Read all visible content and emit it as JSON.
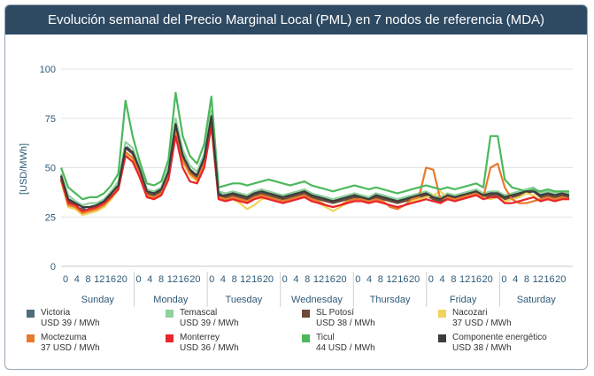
{
  "title": "Evolución semanal del Precio Marginal Local (PML) en 7 nodos de referencia (MDA)",
  "chart_data": {
    "type": "line",
    "title": "Evolución semanal del Precio Marginal Local (PML) en 7 nodos de referencia (MDA)",
    "ylabel": "[USD/MWh]",
    "ylim": [
      0,
      100
    ],
    "yticks": [
      0,
      25,
      50,
      75,
      100
    ],
    "hour_ticks": [
      "0",
      "4",
      "8",
      "12",
      "16",
      "20"
    ],
    "days": [
      "Sunday",
      "Monday",
      "Tuesday",
      "Wednesday",
      "Thursday",
      "Friday",
      "Saturday"
    ],
    "grid": "horizontal",
    "legend_position": "bottom",
    "series": [
      {
        "name": "Victoria",
        "value_text": "USD 39 / MWh",
        "color": "#4f6d7a",
        "values": [
          46,
          34,
          32,
          29,
          30,
          31,
          33,
          37,
          41,
          61,
          58,
          49,
          38,
          37,
          39,
          48,
          73,
          57,
          49,
          46,
          55,
          77,
          37,
          36,
          37,
          36,
          35,
          37,
          38,
          37,
          36,
          35,
          36,
          37,
          38,
          36,
          35,
          34,
          33,
          34,
          35,
          36,
          35,
          34,
          36,
          35,
          34,
          33,
          34,
          35,
          36,
          37,
          35,
          34,
          36,
          35,
          36,
          37,
          38,
          36,
          37,
          37,
          35,
          36,
          37,
          38,
          39,
          36,
          37,
          36,
          37,
          36
        ]
      },
      {
        "name": "Temascal",
        "value_text": "USD 39 / MWh",
        "color": "#8fd19e",
        "values": [
          47,
          36,
          33,
          31,
          32,
          32,
          34,
          38,
          43,
          63,
          60,
          50,
          39,
          38,
          40,
          50,
          75,
          59,
          51,
          48,
          57,
          79,
          38,
          37,
          38,
          37,
          36,
          38,
          39,
          38,
          37,
          36,
          37,
          38,
          39,
          37,
          36,
          35,
          34,
          35,
          36,
          37,
          36,
          35,
          37,
          36,
          35,
          34,
          35,
          36,
          37,
          38,
          36,
          35,
          37,
          36,
          37,
          38,
          39,
          37,
          38,
          38,
          36,
          37,
          38,
          39,
          40,
          37,
          38,
          37,
          38,
          37
        ]
      },
      {
        "name": "SL Potosí",
        "value_text": "USD 38 / MWh",
        "color": "#6b4a36",
        "values": [
          45,
          33,
          31,
          28,
          29,
          30,
          32,
          36,
          40,
          60,
          57,
          48,
          37,
          36,
          38,
          47,
          72,
          56,
          48,
          45,
          54,
          76,
          36,
          35,
          36,
          35,
          34,
          36,
          37,
          36,
          35,
          34,
          35,
          36,
          37,
          35,
          34,
          33,
          32,
          33,
          34,
          35,
          34,
          33,
          35,
          34,
          33,
          32,
          33,
          34,
          35,
          36,
          34,
          33,
          35,
          34,
          35,
          36,
          37,
          35,
          36,
          36,
          34,
          35,
          36,
          37,
          38,
          35,
          36,
          35,
          36,
          35
        ]
      },
      {
        "name": "Nacozari",
        "value_text": "37 USD / MWh",
        "color": "#f2d25a",
        "values": [
          43,
          30,
          29,
          26,
          27,
          28,
          30,
          34,
          39,
          57,
          54,
          46,
          35,
          34,
          36,
          45,
          69,
          53,
          46,
          43,
          51,
          73,
          35,
          34,
          34,
          32,
          29,
          31,
          34,
          35,
          34,
          33,
          34,
          35,
          35,
          33,
          32,
          30,
          28,
          30,
          32,
          33,
          33,
          32,
          33,
          32,
          31,
          29,
          31,
          33,
          34,
          35,
          36,
          38,
          35,
          34,
          34,
          35,
          36,
          35,
          34,
          35,
          33,
          34,
          35,
          37,
          36,
          33,
          34,
          33,
          34,
          34
        ]
      },
      {
        "name": "Moctezuma",
        "value_text": "37 USD / MWh",
        "color": "#e87a2e",
        "values": [
          44,
          31,
          30,
          27,
          28,
          29,
          31,
          35,
          40,
          58,
          55,
          47,
          36,
          35,
          37,
          46,
          70,
          54,
          47,
          44,
          52,
          74,
          35,
          34,
          35,
          34,
          33,
          35,
          36,
          35,
          34,
          33,
          34,
          35,
          36,
          34,
          33,
          31,
          30,
          31,
          33,
          34,
          34,
          33,
          34,
          33,
          30,
          29,
          31,
          34,
          35,
          50,
          49,
          34,
          35,
          34,
          35,
          36,
          37,
          35,
          50,
          52,
          40,
          34,
          32,
          32,
          33,
          34,
          35,
          34,
          35,
          34
        ]
      },
      {
        "name": "Monterrey",
        "value_text": "USD 36 / MWh",
        "color": "#e8262b",
        "values": [
          44,
          32,
          31,
          28,
          29,
          30,
          32,
          35,
          39,
          56,
          53,
          45,
          35,
          34,
          36,
          44,
          66,
          50,
          43,
          42,
          50,
          71,
          34,
          33,
          34,
          33,
          32,
          34,
          35,
          34,
          33,
          32,
          33,
          34,
          35,
          33,
          32,
          31,
          30,
          31,
          32,
          33,
          33,
          32,
          33,
          32,
          31,
          30,
          31,
          32,
          33,
          34,
          33,
          32,
          34,
          33,
          34,
          35,
          36,
          34,
          35,
          35,
          32,
          32,
          33,
          34,
          35,
          33,
          34,
          33,
          34,
          34
        ]
      },
      {
        "name": "Ticul",
        "value_text": "44 USD / MWh",
        "color": "#4cb85c",
        "values": [
          50,
          40,
          37,
          34,
          35,
          35,
          37,
          41,
          47,
          84,
          66,
          53,
          42,
          41,
          43,
          54,
          88,
          66,
          56,
          52,
          62,
          86,
          40,
          41,
          42,
          42,
          41,
          42,
          43,
          44,
          43,
          42,
          41,
          42,
          43,
          41,
          40,
          39,
          38,
          39,
          40,
          41,
          40,
          39,
          40,
          39,
          38,
          37,
          38,
          39,
          40,
          41,
          40,
          39,
          40,
          39,
          40,
          41,
          42,
          40,
          66,
          66,
          44,
          40,
          39,
          38,
          39,
          38,
          39,
          38,
          38,
          38
        ]
      },
      {
        "name": "Componente energético",
        "value_text": "USD 38 / MWh",
        "color": "#3c3c3c",
        "values": [
          46,
          34,
          32,
          30,
          30,
          31,
          33,
          37,
          41,
          60,
          58,
          49,
          38,
          37,
          39,
          48,
          72,
          56,
          49,
          46,
          55,
          76,
          36,
          36,
          37,
          36,
          35,
          37,
          38,
          37,
          36,
          35,
          36,
          37,
          38,
          36,
          35,
          34,
          33,
          34,
          35,
          36,
          35,
          34,
          36,
          35,
          34,
          33,
          34,
          35,
          36,
          37,
          35,
          34,
          36,
          35,
          36,
          37,
          38,
          36,
          37,
          37,
          35,
          36,
          37,
          38,
          38,
          36,
          37,
          36,
          37,
          36
        ]
      }
    ],
    "dashed_series": [
      "Victoria"
    ]
  }
}
